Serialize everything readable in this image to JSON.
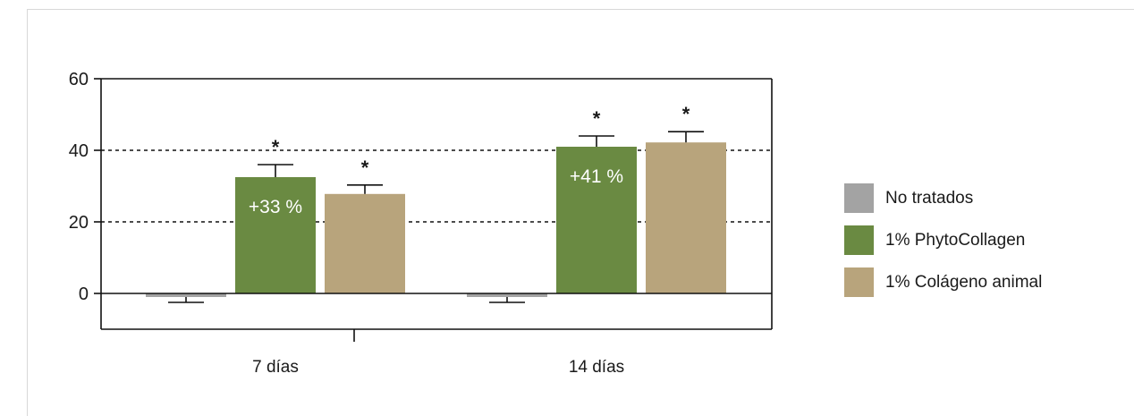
{
  "chart_data": {
    "type": "bar",
    "categories": [
      "7 días",
      "14 días"
    ],
    "series": [
      {
        "name": "No tratados",
        "color": "#a3a3a3",
        "values": [
          -1,
          -1
        ],
        "errors": [
          1.5,
          1.5
        ]
      },
      {
        "name": "1% PhytoCollagen",
        "color": "#6a8a42",
        "values": [
          32.5,
          41
        ],
        "errors": [
          3.5,
          3
        ]
      },
      {
        "name": "1% Colágeno animal",
        "color": "#b8a47c",
        "values": [
          27.8,
          42.2
        ],
        "errors": [
          2.5,
          3
        ]
      }
    ],
    "ylim": [
      -10,
      60
    ],
    "yticks": [
      0,
      20,
      40,
      60
    ],
    "dashed_gridlines": [
      20,
      40
    ],
    "significance": [
      {
        "category": 0,
        "series": 1,
        "text": "*"
      },
      {
        "category": 0,
        "series": 2,
        "text": "*"
      },
      {
        "category": 1,
        "series": 1,
        "text": "*"
      },
      {
        "category": 1,
        "series": 2,
        "text": "*"
      }
    ],
    "bar_labels": [
      {
        "category": 0,
        "series": 1,
        "text": "+33 %"
      },
      {
        "category": 1,
        "series": 1,
        "text": "+41 %"
      }
    ],
    "legend_position": "right",
    "xlabel": "",
    "ylabel": ""
  }
}
